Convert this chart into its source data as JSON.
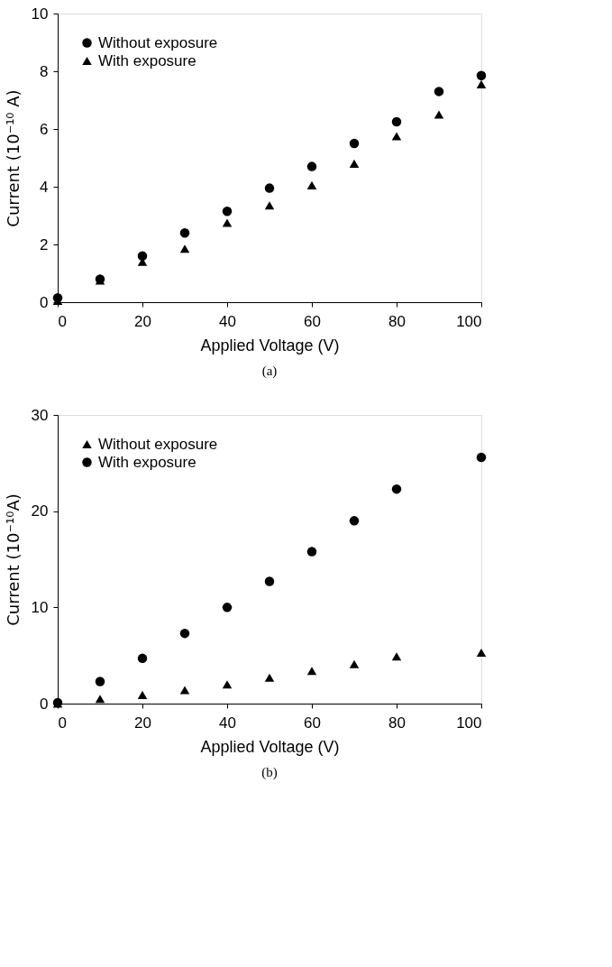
{
  "chart_data": [
    {
      "type": "scatter",
      "xlabel": "Applied Voltage (V)",
      "ylabel": "Current (10⁻¹⁰ A)",
      "annotations": [
        "(a)"
      ],
      "xlim": [
        0,
        100
      ],
      "ylim": [
        0,
        10
      ],
      "xticks": [
        0,
        20,
        40,
        60,
        80,
        100
      ],
      "yticks": [
        0,
        2,
        4,
        6,
        8,
        10
      ],
      "grid": false,
      "legend": "top left",
      "x": [
        0,
        10,
        20,
        30,
        40,
        50,
        60,
        70,
        80,
        90,
        100
      ],
      "series": [
        {
          "name": "Without exposure",
          "color": "#000000",
          "marker": "circle",
          "values": [
            0.15,
            0.8,
            1.6,
            2.4,
            3.15,
            3.95,
            4.7,
            5.5,
            6.25,
            7.3,
            7.85
          ]
        },
        {
          "name": "With exposure",
          "color": "#000000",
          "marker": "triangle",
          "values": [
            0.05,
            0.75,
            1.4,
            1.85,
            2.75,
            3.35,
            4.05,
            4.8,
            5.75,
            6.5,
            7.55
          ]
        }
      ]
    },
    {
      "type": "scatter",
      "xlabel": "Applied Voltage (V)",
      "ylabel": "Current (10⁻¹⁰A)",
      "annotations": [
        "(b)"
      ],
      "xlim": [
        0,
        100
      ],
      "ylim": [
        0,
        30
      ],
      "xticks": [
        0,
        20,
        40,
        60,
        80,
        100
      ],
      "yticks": [
        0,
        10,
        20,
        30
      ],
      "grid": false,
      "legend": "top left",
      "x": [
        0,
        10,
        20,
        30,
        40,
        50,
        60,
        70,
        80,
        100
      ],
      "series": [
        {
          "name": "Without exposure",
          "color": "#000000",
          "marker": "triangle",
          "values": [
            0.0,
            0.5,
            0.9,
            1.4,
            2.0,
            2.7,
            3.4,
            4.1,
            4.9,
            5.3
          ]
        },
        {
          "name": "With exposure",
          "color": "#000000",
          "marker": "circle",
          "values": [
            0.1,
            2.3,
            4.7,
            7.3,
            10.0,
            12.7,
            15.8,
            19.0,
            22.3,
            25.6
          ]
        }
      ]
    }
  ]
}
